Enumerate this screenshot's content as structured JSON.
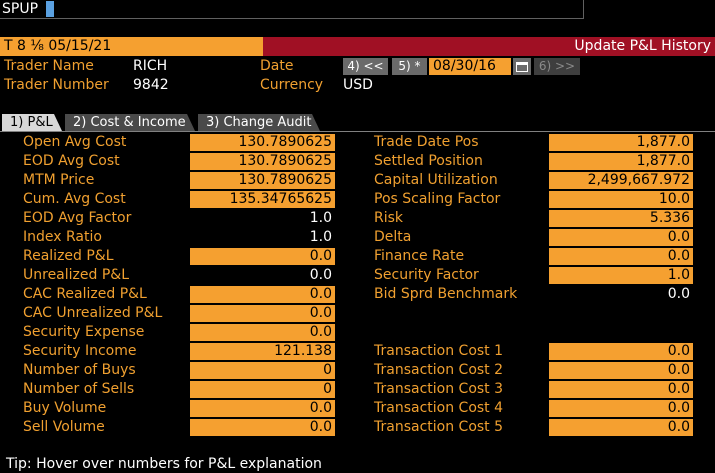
{
  "command": {
    "text": "SPUP"
  },
  "titlebar": {
    "left": "T 8 ⅟₈ 05/15/21",
    "right": "Update P&L History"
  },
  "header": {
    "trader_name_label": "Trader Name",
    "trader_name_value": "RICH",
    "trader_number_label": "Trader Number",
    "trader_number_value": "9842",
    "date_label": "Date",
    "date_value": "08/30/16",
    "currency_label": "Currency",
    "currency_value": "USD",
    "btn_prev": "4) <<",
    "btn_current": "5) *",
    "btn_next": "6) >>"
  },
  "tabs": [
    {
      "label": "1) P&L"
    },
    {
      "label": "2) Cost & Income"
    },
    {
      "label": "3) Change Audit"
    }
  ],
  "left_fields": [
    {
      "label": "Open Avg Cost",
      "value": "130.7890625",
      "boxed": true
    },
    {
      "label": "EOD Avg Cost",
      "value": "130.7890625",
      "boxed": true
    },
    {
      "label": "MTM Price",
      "value": "130.7890625",
      "boxed": true
    },
    {
      "label": "Cum. Avg Cost",
      "value": "135.34765625",
      "boxed": true
    },
    {
      "label": "EOD Avg Factor",
      "value": "1.0",
      "boxed": false
    },
    {
      "label": "Index Ratio",
      "value": "1.0",
      "boxed": false
    },
    {
      "label": "Realized P&L",
      "value": "0.0",
      "boxed": true
    },
    {
      "label": "Unrealized P&L",
      "value": "0.0",
      "boxed": false
    },
    {
      "label": "CAC Realized P&L",
      "value": "0.0",
      "boxed": true
    },
    {
      "label": "CAC Unrealized P&L",
      "value": "0.0",
      "boxed": true
    },
    {
      "label": "Security Expense",
      "value": "0.0",
      "boxed": true
    },
    {
      "label": "Security Income",
      "value": "121.138",
      "boxed": true
    },
    {
      "label": "Number of Buys",
      "value": "0",
      "boxed": true
    },
    {
      "label": "Number of Sells",
      "value": "0",
      "boxed": true
    },
    {
      "label": "Buy Volume",
      "value": "0.0",
      "boxed": true
    },
    {
      "label": "Sell Volume",
      "value": "0.0",
      "boxed": true
    }
  ],
  "right_fields": [
    {
      "label": "Trade Date Pos",
      "value": "1,877.0",
      "boxed": true
    },
    {
      "label": "Settled Position",
      "value": "1,877.0",
      "boxed": true
    },
    {
      "label": "Capital Utilization",
      "value": "2,499,667.972",
      "boxed": true
    },
    {
      "label": "Pos Scaling Factor",
      "value": "10.0",
      "boxed": true
    },
    {
      "label": "Risk",
      "value": "5.336",
      "boxed": true
    },
    {
      "label": "Delta",
      "value": "0.0",
      "boxed": true
    },
    {
      "label": "Finance Rate",
      "value": "0.0",
      "boxed": true
    },
    {
      "label": "Security Factor",
      "value": "1.0",
      "boxed": true
    },
    {
      "label": "Bid Sprd Benchmark",
      "value": "0.0",
      "boxed": false
    }
  ],
  "transaction_fields": [
    {
      "label": "Transaction Cost 1",
      "value": "0.0"
    },
    {
      "label": "Transaction Cost 2",
      "value": "0.0"
    },
    {
      "label": "Transaction Cost 3",
      "value": "0.0"
    },
    {
      "label": "Transaction Cost 4",
      "value": "0.0"
    },
    {
      "label": "Transaction Cost 5",
      "value": "0.0"
    }
  ],
  "tip": "Tip: Hover over numbers for P&L explanation"
}
